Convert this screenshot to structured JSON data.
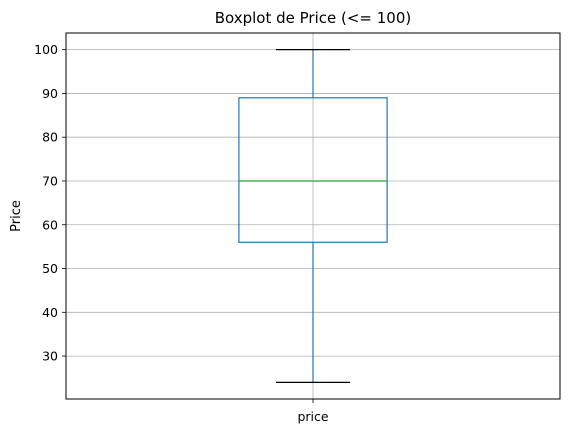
{
  "chart_data": {
    "type": "boxplot",
    "title": "Boxplot de Price (<= 100)",
    "xlabel": "",
    "ylabel": "Price",
    "categories": [
      "price"
    ],
    "boxes": [
      {
        "category": "price",
        "whisker_low": 24,
        "q1": 56,
        "median": 70,
        "q3": 89,
        "whisker_high": 100
      }
    ],
    "ylim": [
      20.2,
      103.8
    ],
    "yticks": [
      30,
      40,
      50,
      60,
      70,
      80,
      90,
      100
    ],
    "grid": true,
    "colors": {
      "box": "#1f77b4",
      "whisker": "#1f77b4",
      "cap": "#000000",
      "median": "#2ca02c",
      "grid": "#b0b0b0",
      "axes": "#000000"
    }
  }
}
